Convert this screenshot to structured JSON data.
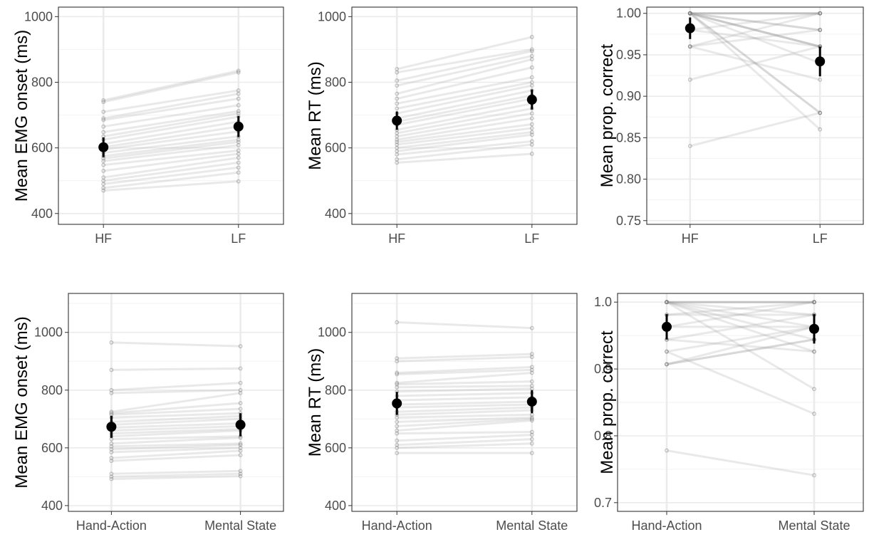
{
  "chart_data": [
    {
      "type": "line",
      "ylabel": "Mean EMG onset (ms)",
      "xlabel": "",
      "categories": [
        "HF",
        "LF"
      ],
      "ylim": [
        367,
        1029
      ],
      "yticks": [
        400,
        600,
        800,
        1000
      ],
      "ytick_labels": [
        "400",
        "600",
        "800",
        "1000"
      ],
      "grid": true,
      "series": [
        {
          "values": [
            745,
            835
          ]
        },
        {
          "values": [
            740,
            830
          ]
        },
        {
          "values": [
            710,
            775
          ]
        },
        {
          "values": [
            690,
            765
          ]
        },
        {
          "values": [
            685,
            750
          ]
        },
        {
          "values": [
            665,
            730
          ]
        },
        {
          "values": [
            648,
            712
          ]
        },
        {
          "values": [
            635,
            705
          ]
        },
        {
          "values": [
            625,
            695
          ]
        },
        {
          "values": [
            612,
            680
          ]
        },
        {
          "values": [
            602,
            665
          ]
        },
        {
          "values": [
            595,
            650
          ]
        },
        {
          "values": [
            585,
            635
          ]
        },
        {
          "values": [
            575,
            625
          ]
        },
        {
          "values": [
            568,
            618
          ]
        },
        {
          "values": [
            560,
            608
          ]
        },
        {
          "values": [
            548,
            592
          ]
        },
        {
          "values": [
            530,
            582
          ]
        },
        {
          "values": [
            510,
            570
          ]
        },
        {
          "values": [
            500,
            555
          ]
        },
        {
          "values": [
            490,
            540
          ]
        },
        {
          "values": [
            478,
            525
          ]
        },
        {
          "values": [
            470,
            498
          ]
        }
      ],
      "mean": [
        602,
        665
      ],
      "error": [
        [
          572,
          632
        ],
        [
          633,
          697
        ]
      ]
    },
    {
      "type": "line",
      "ylabel": "Mean RT (ms)",
      "xlabel": "",
      "categories": [
        "HF",
        "LF"
      ],
      "ylim": [
        367,
        1029
      ],
      "yticks": [
        400,
        600,
        800,
        1000
      ],
      "ytick_labels": [
        "400",
        "600",
        "800",
        "1000"
      ],
      "grid": true,
      "series": [
        {
          "values": [
            840,
            938
          ]
        },
        {
          "values": [
            830,
            900
          ]
        },
        {
          "values": [
            805,
            895
          ]
        },
        {
          "values": [
            790,
            880
          ]
        },
        {
          "values": [
            765,
            870
          ]
        },
        {
          "values": [
            750,
            845
          ]
        },
        {
          "values": [
            735,
            815
          ]
        },
        {
          "values": [
            720,
            800
          ]
        },
        {
          "values": [
            705,
            790
          ]
        },
        {
          "values": [
            690,
            775
          ]
        },
        {
          "values": [
            680,
            760
          ]
        },
        {
          "values": [
            670,
            750
          ]
        },
        {
          "values": [
            655,
            735
          ]
        },
        {
          "values": [
            645,
            720
          ]
        },
        {
          "values": [
            635,
            705
          ]
        },
        {
          "values": [
            625,
            690
          ]
        },
        {
          "values": [
            618,
            672
          ]
        },
        {
          "values": [
            610,
            660
          ]
        },
        {
          "values": [
            600,
            648
          ]
        },
        {
          "values": [
            590,
            640
          ]
        },
        {
          "values": [
            580,
            620
          ]
        },
        {
          "values": [
            565,
            610
          ]
        },
        {
          "values": [
            555,
            582
          ]
        }
      ],
      "mean": [
        683,
        747
      ],
      "error": [
        [
          655,
          711
        ],
        [
          717,
          778
        ]
      ]
    },
    {
      "type": "line",
      "ylabel": "Mean prop. correct",
      "xlabel": "",
      "categories": [
        "HF",
        "LF"
      ],
      "ylim": [
        0.7455,
        1.0075
      ],
      "yticks": [
        0.75,
        0.8,
        0.85,
        0.9,
        0.95,
        1.0
      ],
      "ytick_labels": [
        "0.75",
        "0.80",
        "0.85",
        "0.90",
        "0.95",
        "1.00"
      ],
      "grid": true,
      "series": [
        {
          "values": [
            1.0,
            1.0
          ]
        },
        {
          "values": [
            1.0,
            1.0
          ]
        },
        {
          "values": [
            1.0,
            1.0
          ]
        },
        {
          "values": [
            1.0,
            0.98
          ]
        },
        {
          "values": [
            1.0,
            0.98
          ]
        },
        {
          "values": [
            1.0,
            0.96
          ]
        },
        {
          "values": [
            1.0,
            0.96
          ]
        },
        {
          "values": [
            1.0,
            0.96
          ]
        },
        {
          "values": [
            1.0,
            0.94
          ]
        },
        {
          "values": [
            1.0,
            0.88
          ]
        },
        {
          "values": [
            1.0,
            0.88
          ]
        },
        {
          "values": [
            1.0,
            0.86
          ]
        },
        {
          "values": [
            0.98,
            1.0
          ]
        },
        {
          "values": [
            0.98,
            0.96
          ]
        },
        {
          "values": [
            0.96,
            1.0
          ]
        },
        {
          "values": [
            0.96,
            0.98
          ]
        },
        {
          "values": [
            0.96,
            0.92
          ]
        },
        {
          "values": [
            0.92,
            0.96
          ]
        },
        {
          "values": [
            0.84,
            0.88
          ]
        }
      ],
      "mean": [
        0.982,
        0.942
      ],
      "error": [
        [
          0.969,
          0.995
        ],
        [
          0.924,
          0.96
        ]
      ]
    },
    {
      "type": "line",
      "ylabel": "Mean EMG onset (ms)",
      "xlabel": "",
      "categories": [
        "Hand-Action",
        "Mental State"
      ],
      "ylim": [
        380,
        1135
      ],
      "yticks": [
        400,
        600,
        800,
        1000
      ],
      "ytick_labels": [
        "400",
        "600",
        "800",
        "1000"
      ],
      "grid": true,
      "series": [
        {
          "values": [
            965,
            952
          ]
        },
        {
          "values": [
            870,
            875
          ]
        },
        {
          "values": [
            800,
            825
          ]
        },
        {
          "values": [
            790,
            800
          ]
        },
        {
          "values": [
            725,
            790
          ]
        },
        {
          "values": [
            720,
            755
          ]
        },
        {
          "values": [
            715,
            735
          ]
        },
        {
          "values": [
            705,
            720
          ]
        },
        {
          "values": [
            690,
            710
          ]
        },
        {
          "values": [
            680,
            700
          ]
        },
        {
          "values": [
            670,
            685
          ]
        },
        {
          "values": [
            660,
            675
          ]
        },
        {
          "values": [
            650,
            665
          ]
        },
        {
          "values": [
            640,
            660
          ]
        },
        {
          "values": [
            630,
            640
          ]
        },
        {
          "values": [
            615,
            635
          ]
        },
        {
          "values": [
            605,
            615
          ]
        },
        {
          "values": [
            595,
            610
          ]
        },
        {
          "values": [
            585,
            600
          ]
        },
        {
          "values": [
            565,
            590
          ]
        },
        {
          "values": [
            555,
            575
          ]
        },
        {
          "values": [
            510,
            520
          ]
        },
        {
          "values": [
            500,
            510
          ]
        },
        {
          "values": [
            492,
            502
          ]
        }
      ],
      "mean": [
        673,
        680
      ],
      "error": [
        [
          635,
          711
        ],
        [
          640,
          720
        ]
      ]
    },
    {
      "type": "line",
      "ylabel": "Mean RT (ms)",
      "xlabel": "",
      "categories": [
        "Hand-Action",
        "Mental State"
      ],
      "ylim": [
        380,
        1135
      ],
      "yticks": [
        400,
        600,
        800,
        1000
      ],
      "ytick_labels": [
        "400",
        "600",
        "800",
        "1000"
      ],
      "grid": true,
      "series": [
        {
          "values": [
            1035,
            1015
          ]
        },
        {
          "values": [
            910,
            925
          ]
        },
        {
          "values": [
            900,
            915
          ]
        },
        {
          "values": [
            860,
            880
          ]
        },
        {
          "values": [
            855,
            870
          ]
        },
        {
          "values": [
            825,
            860
          ]
        },
        {
          "values": [
            820,
            830
          ]
        },
        {
          "values": [
            810,
            815
          ]
        },
        {
          "values": [
            795,
            805
          ]
        },
        {
          "values": [
            780,
            790
          ]
        },
        {
          "values": [
            765,
            775
          ]
        },
        {
          "values": [
            750,
            760
          ]
        },
        {
          "values": [
            740,
            750
          ]
        },
        {
          "values": [
            725,
            740
          ]
        },
        {
          "values": [
            715,
            730
          ]
        },
        {
          "values": [
            705,
            715
          ]
        },
        {
          "values": [
            690,
            705
          ]
        },
        {
          "values": [
            675,
            700
          ]
        },
        {
          "values": [
            660,
            695
          ]
        },
        {
          "values": [
            650,
            655
          ]
        },
        {
          "values": [
            625,
            645
          ]
        },
        {
          "values": [
            610,
            630
          ]
        },
        {
          "values": [
            600,
            615
          ]
        },
        {
          "values": [
            582,
            582
          ]
        }
      ],
      "mean": [
        754,
        760
      ],
      "error": [
        [
          714,
          794
        ],
        [
          720,
          800
        ]
      ]
    },
    {
      "type": "line",
      "ylabel": "Mean prop. correct",
      "xlabel": "",
      "categories": [
        "Hand-Action",
        "Mental State"
      ],
      "ylim": [
        0.687,
        1.013
      ],
      "yticks": [
        0.7,
        0.8,
        0.9,
        1.0
      ],
      "ytick_labels": [
        "0.7",
        "0.8",
        "0.9",
        "1.0"
      ],
      "grid": true,
      "series": [
        {
          "values": [
            1.0,
            1.0
          ]
        },
        {
          "values": [
            1.0,
            1.0
          ]
        },
        {
          "values": [
            1.0,
            1.0
          ]
        },
        {
          "values": [
            1.0,
            0.981
          ]
        },
        {
          "values": [
            1.0,
            0.963
          ]
        },
        {
          "values": [
            1.0,
            0.944
          ]
        },
        {
          "values": [
            1.0,
            0.926
          ]
        },
        {
          "values": [
            1.0,
            0.87
          ]
        },
        {
          "values": [
            0.981,
            1.0
          ]
        },
        {
          "values": [
            0.981,
            0.981
          ]
        },
        {
          "values": [
            0.963,
            1.0
          ]
        },
        {
          "values": [
            0.963,
            0.963
          ]
        },
        {
          "values": [
            0.944,
            0.981
          ]
        },
        {
          "values": [
            0.944,
            0.926
          ]
        },
        {
          "values": [
            0.926,
            0.963
          ]
        },
        {
          "values": [
            0.926,
            0.833
          ]
        },
        {
          "values": [
            0.907,
            0.963
          ]
        },
        {
          "values": [
            0.907,
            0.944
          ]
        },
        {
          "values": [
            0.907,
            0.944
          ]
        },
        {
          "values": [
            0.778,
            0.741
          ]
        }
      ],
      "mean": [
        0.963,
        0.96
      ],
      "error": [
        [
          0.944,
          0.982
        ],
        [
          0.938,
          0.982
        ]
      ]
    }
  ]
}
